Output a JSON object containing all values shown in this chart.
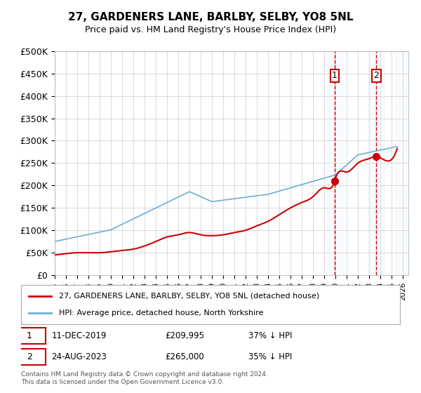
{
  "title": "27, GARDENERS LANE, BARLBY, SELBY, YO8 5NL",
  "subtitle": "Price paid vs. HM Land Registry's House Price Index (HPI)",
  "xlabel": "",
  "ylabel": "",
  "ylim": [
    0,
    500000
  ],
  "yticks": [
    0,
    50000,
    100000,
    150000,
    200000,
    250000,
    300000,
    350000,
    400000,
    450000,
    500000
  ],
  "ytick_labels": [
    "£0",
    "£50K",
    "£100K",
    "£150K",
    "£200K",
    "£250K",
    "£300K",
    "£350K",
    "£400K",
    "£450K",
    "£500K"
  ],
  "xlim_start": 1995.0,
  "xlim_end": 2026.5,
  "sale1_x": 2019.94,
  "sale1_y": 209995,
  "sale1_label": "1",
  "sale1_date": "11-DEC-2019",
  "sale1_price": "£209,995",
  "sale1_note": "37% ↓ HPI",
  "sale2_x": 2023.65,
  "sale2_y": 265000,
  "sale2_label": "2",
  "sale2_date": "24-AUG-2023",
  "sale2_price": "£265,000",
  "sale2_note": "35% ↓ HPI",
  "hpi_color": "#6baed6",
  "price_color": "#cc0000",
  "vline_color": "#cc0000",
  "shade_color": "#ddeeff",
  "hatch_color": "#ddeeff",
  "legend_label_price": "27, GARDENERS LANE, BARLBY, SELBY, YO8 5NL (detached house)",
  "legend_label_hpi": "HPI: Average price, detached house, North Yorkshire",
  "footer": "Contains HM Land Registry data © Crown copyright and database right 2024.\nThis data is licensed under the Open Government Licence v3.0.",
  "background_color": "#ffffff",
  "grid_color": "#cccccc"
}
